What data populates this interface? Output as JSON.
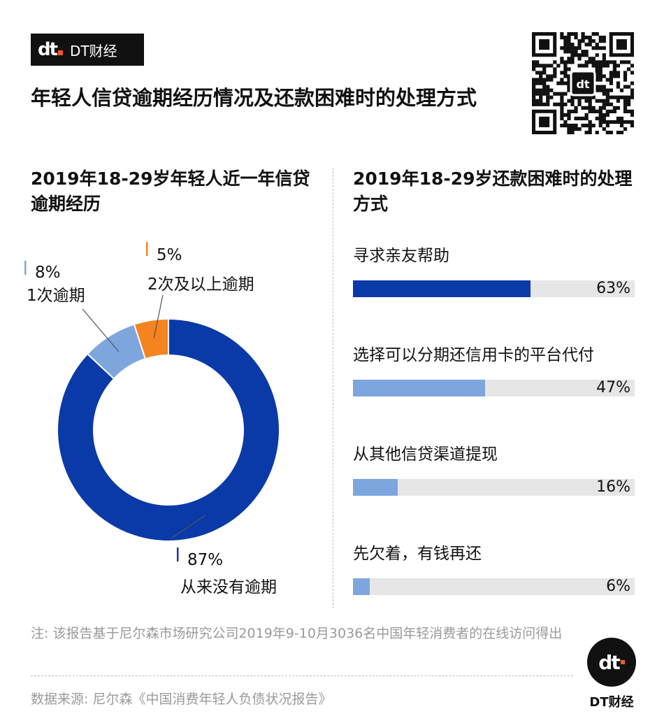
{
  "header": {
    "logo_mark": "dt",
    "logo_brand": "DT财经",
    "title": "年轻人信贷逾期经历情况及还款困难时的处理方式"
  },
  "left": {
    "subtitle": "2019年18-29岁年轻人近一年信贷逾期经历"
  },
  "right": {
    "subtitle": "2019年18-29岁还款困难时的处理方式"
  },
  "colors": {
    "dark_blue": "#0a3aa8",
    "light_blue": "#7ea6de",
    "orange": "#f5831f",
    "track": "#e6e6e6"
  },
  "chart_data": [
    {
      "type": "pie",
      "title": "2019年18-29岁年轻人近一年信贷逾期经历",
      "donut": true,
      "slices": [
        {
          "label": "从来没有逾期",
          "value": 87,
          "display": "87%",
          "color": "#0a3aa8"
        },
        {
          "label": "1次逾期",
          "value": 8,
          "display": "8%",
          "color": "#7ea6de"
        },
        {
          "label": "2次及以上逾期",
          "value": 5,
          "display": "5%",
          "color": "#f5831f"
        }
      ]
    },
    {
      "type": "bar",
      "orientation": "horizontal",
      "title": "2019年18-29岁还款困难时的处理方式",
      "categories": [
        "寻求亲友帮助",
        "选择可以分期还信用卡的平台代付",
        "从其他信贷渠道提现",
        "先欠着，有钱再还"
      ],
      "values": [
        63,
        47,
        16,
        6
      ],
      "labels": [
        "63%",
        "47%",
        "16%",
        "6%"
      ],
      "xlim": [
        0,
        100
      ],
      "colors": [
        "#0a3aa8",
        "#7ea6de",
        "#7ea6de",
        "#7ea6de"
      ]
    }
  ],
  "footer": {
    "note": "注: 该报告基于尼尔森市场研究公司2019年9-10月3036名中国年轻消费者的在线访问得出",
    "source": "数据来源: 尼尔森《中国消费年轻人负债状况报告》",
    "badge_mark": "dt",
    "badge_text": "DT财经"
  },
  "icons": {
    "qr": "qr-code-icon"
  }
}
